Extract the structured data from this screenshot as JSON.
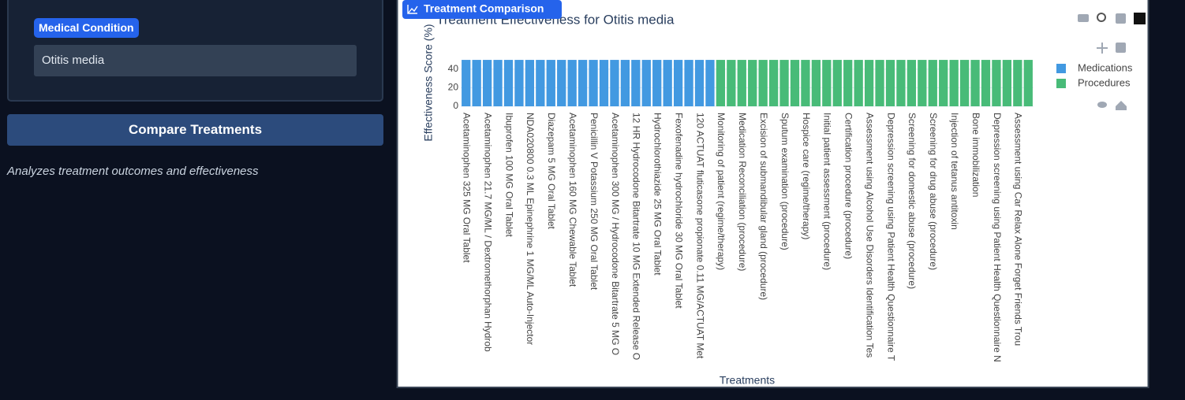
{
  "sidebar": {
    "field_label": "Medical Condition",
    "field_value": "Otitis media",
    "button": "Compare Treatments",
    "caption": "Analyzes treatment outcomes and effectiveness"
  },
  "panel": {
    "tab": "Treatment Comparison"
  },
  "chart_data": {
    "type": "bar",
    "title": "Treatment Effectiveness for Otitis media",
    "x_label": "Treatments",
    "y_label": "Effectiveness Score (%)",
    "categories": [
      "Acetaminophen 325 MG Oral Tablet",
      null,
      "Acetaminophen 21.7 MG/ML / Dextromethorphan Hydrob",
      null,
      "Ibuprofen 100 MG Oral Tablet",
      null,
      "NDA020800 0.3 ML Epinephrine 1 MG/ML Auto-Injector",
      null,
      "Diazepam 5 MG Oral Tablet",
      null,
      "Acetaminophen 160 MG Chewable Tablet",
      null,
      "Penicillin V Potassium 250 MG Oral Tablet",
      null,
      "Acetaminophen 300 MG / Hydrocodone Bitartrate 5 MG O",
      null,
      "12 HR Hydrocodone Bitartrate 10 MG Extended Release O",
      null,
      "Hydrochlorothiazide 25 MG Oral Tablet",
      null,
      "Fexofenadine hydrochloride 30 MG Oral Tablet",
      null,
      "120 ACTUAT fluticasone propionate 0.11 MG/ACTUAT Met",
      null,
      "Monitoring of patient (regime/therapy)",
      null,
      "Medication Reconciliation (procedure)",
      null,
      "Excision of submandibular gland (procedure)",
      null,
      "Sputum examination (procedure)",
      null,
      "Hospice care (regime/therapy)",
      null,
      "Initial patient assessment (procedure)",
      null,
      "Certification procedure (procedure)",
      null,
      "Assessment using Alcohol Use Disorders Identification Tes",
      null,
      "Depression screening using Patient Health Questionnaire T",
      null,
      "Screening for domestic abuse (procedure)",
      null,
      "Screening for drug abuse (procedure)",
      null,
      "Injection of tetanus antitoxin",
      null,
      "Bone immobilization",
      null,
      "Depression screening using Patient Health Questionnaire N",
      null,
      "Assessment using Car  Relax  Alone  Forget  Friends  Trou",
      null
    ],
    "series": [
      {
        "name": "Medications",
        "color": "#4299e1",
        "values": [
          50,
          50,
          50,
          50,
          50,
          50,
          50,
          50,
          50,
          50,
          50,
          50,
          50,
          50,
          50,
          50,
          50,
          50,
          50,
          50,
          50,
          50,
          50,
          50,
          null,
          null,
          null,
          null,
          null,
          null,
          null,
          null,
          null,
          null,
          null,
          null,
          null,
          null,
          null,
          null,
          null,
          null,
          null,
          null,
          null,
          null,
          null,
          null,
          null,
          null,
          null,
          null,
          null,
          null
        ]
      },
      {
        "name": "Procedures",
        "color": "#48bb78",
        "values": [
          null,
          null,
          null,
          null,
          null,
          null,
          null,
          null,
          null,
          null,
          null,
          null,
          null,
          null,
          null,
          null,
          null,
          null,
          null,
          null,
          null,
          null,
          null,
          null,
          50,
          50,
          50,
          50,
          50,
          50,
          50,
          50,
          50,
          50,
          50,
          50,
          50,
          50,
          50,
          50,
          50,
          50,
          50,
          50,
          50,
          50,
          50,
          50,
          50,
          50,
          50,
          50,
          50,
          50
        ]
      }
    ],
    "ylim": [
      0,
      52.6
    ],
    "yticks": [
      0,
      20,
      40
    ],
    "legend": "right"
  }
}
